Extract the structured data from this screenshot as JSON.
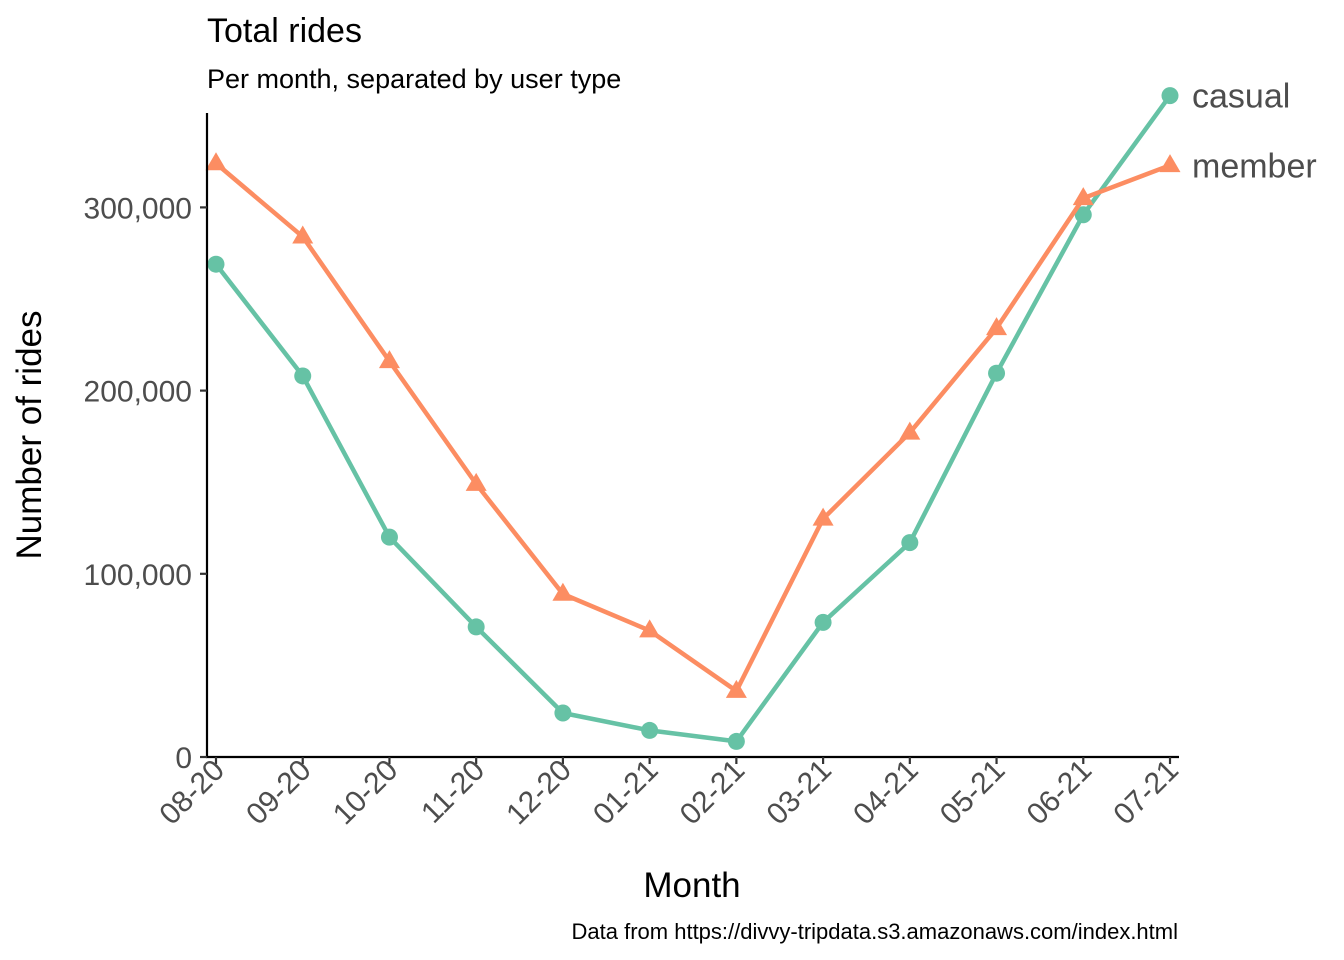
{
  "chart_data": {
    "type": "line",
    "title": "Total rides",
    "subtitle": "Per month, separated by user type",
    "xlabel": "Month",
    "ylabel": "Number of rides",
    "caption": "Data from https://divvy-tripdata.s3.amazonaws.com/index.html",
    "categories": [
      "08-20",
      "09-20",
      "10-20",
      "11-20",
      "12-20",
      "01-21",
      "02-21",
      "03-21",
      "04-21",
      "05-21",
      "06-21",
      "07-21"
    ],
    "ylim": [
      0,
      375000
    ],
    "yticks": [
      0,
      100000,
      200000,
      300000
    ],
    "ytick_labels": [
      "0",
      "100,000",
      "200,000",
      "300,000"
    ],
    "grid": false,
    "legend": "direct labels at line ends",
    "series": [
      {
        "name": "casual",
        "color": "#66c2a5",
        "marker": "circle",
        "values": [
          269000,
          208000,
          120000,
          71000,
          24000,
          14500,
          8500,
          73500,
          117000,
          209500,
          296000,
          361000
        ]
      },
      {
        "name": "member",
        "color": "#fc8d62",
        "marker": "triangle",
        "values": [
          324000,
          284000,
          216000,
          149000,
          89000,
          69000,
          36000,
          130000,
          177000,
          234000,
          305000,
          323000
        ]
      }
    ]
  }
}
